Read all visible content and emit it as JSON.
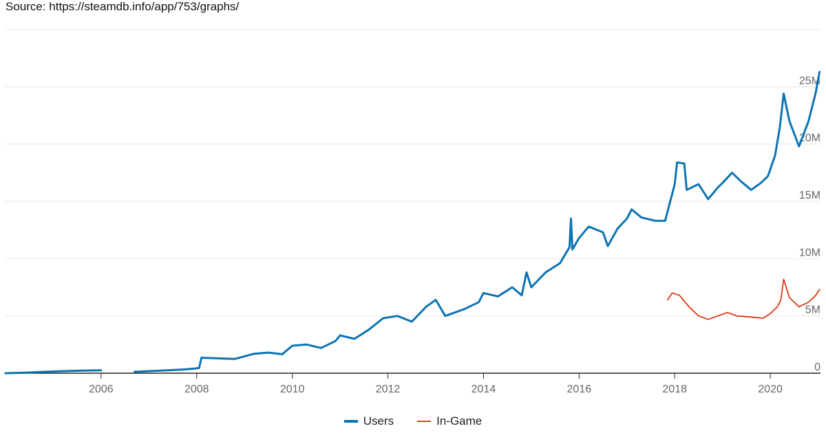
{
  "source_text": "Source: https://steamdb.info/app/753/graphs/",
  "colors": {
    "users": "#0b73b3",
    "ingame": "#dc3912",
    "grid": "#e6e6e6",
    "axis": "#222222"
  },
  "chart_data": {
    "type": "line",
    "xlim": [
      2004.0,
      2021.05
    ],
    "ylim": [
      0,
      30000000
    ],
    "x_ticks": [
      2006,
      2008,
      2010,
      2012,
      2014,
      2016,
      2018,
      2020
    ],
    "y_ticks": [
      {
        "value": 0,
        "label": "0"
      },
      {
        "value": 5000000,
        "label": "5M"
      },
      {
        "value": 10000000,
        "label": "10M"
      },
      {
        "value": 15000000,
        "label": "15M"
      },
      {
        "value": 20000000,
        "label": "20M"
      },
      {
        "value": 25000000,
        "label": "25M"
      }
    ],
    "grid": true,
    "legend_position": "bottom-center",
    "series": [
      {
        "name": "Users",
        "color": "#0b73b3",
        "segments": [
          [
            [
              2004.0,
              0.0
            ],
            [
              2004.4,
              50000.0
            ],
            [
              2004.8,
              120000.0
            ],
            [
              2005.2,
              180000.0
            ],
            [
              2005.6,
              220000.0
            ],
            [
              2006.0,
              250000.0
            ]
          ],
          [
            [
              2006.7,
              120000.0
            ],
            [
              2007.0,
              180000.0
            ],
            [
              2007.4,
              250000.0
            ],
            [
              2007.8,
              350000.0
            ],
            [
              2008.05,
              450000.0
            ],
            [
              2008.1,
              1350000.0
            ],
            [
              2008.4,
              1300000.0
            ],
            [
              2008.8,
              1250000.0
            ],
            [
              2009.2,
              1700000.0
            ],
            [
              2009.5,
              1800000.0
            ],
            [
              2009.8,
              1650000.0
            ]
          ],
          [
            [
              2009.8,
              1700000.0
            ],
            [
              2010.0,
              2400000.0
            ],
            [
              2010.3,
              2500000.0
            ],
            [
              2010.6,
              2200000.0
            ],
            [
              2010.9,
              2800000.0
            ],
            [
              2011.0,
              3300000.0
            ],
            [
              2011.3,
              3000000.0
            ],
            [
              2011.6,
              3800000.0
            ],
            [
              2011.9,
              4800000.0
            ],
            [
              2012.2,
              5000000.0
            ],
            [
              2012.5,
              4500000.0
            ],
            [
              2012.8,
              5800000.0
            ],
            [
              2013.0,
              6400000.0
            ],
            [
              2013.2,
              5000000.0
            ],
            [
              2013.6,
              5600000.0
            ],
            [
              2013.9,
              6200000.0
            ],
            [
              2014.0,
              7000000.0
            ],
            [
              2014.3,
              6700000.0
            ],
            [
              2014.6,
              7500000.0
            ],
            [
              2014.8,
              6800000.0
            ],
            [
              2014.9,
              8800000.0
            ],
            [
              2015.0,
              7500000.0
            ],
            [
              2015.3,
              8800000.0
            ],
            [
              2015.6,
              9600000.0
            ],
            [
              2015.8,
              11000000.0
            ],
            [
              2015.83,
              13500000.0
            ],
            [
              2015.86,
              10800000.0
            ],
            [
              2016.0,
              11800000.0
            ],
            [
              2016.2,
              12800000.0
            ],
            [
              2016.5,
              12300000.0
            ],
            [
              2016.6,
              11100000.0
            ],
            [
              2016.8,
              12600000.0
            ],
            [
              2017.0,
              13500000.0
            ],
            [
              2017.1,
              14300000.0
            ],
            [
              2017.3,
              13600000.0
            ],
            [
              2017.6,
              13300000.0
            ],
            [
              2017.8,
              13300000.0
            ],
            [
              2018.0,
              16500000.0
            ],
            [
              2018.05,
              18400000.0
            ],
            [
              2018.2,
              18300000.0
            ],
            [
              2018.25,
              16000000.0
            ],
            [
              2018.5,
              16500000.0
            ],
            [
              2018.7,
              15200000.0
            ],
            [
              2018.9,
              16200000.0
            ],
            [
              2019.0,
              16600000.0
            ],
            [
              2019.2,
              17500000.0
            ],
            [
              2019.4,
              16700000.0
            ],
            [
              2019.6,
              16000000.0
            ],
            [
              2019.8,
              16600000.0
            ],
            [
              2019.95,
              17200000.0
            ],
            [
              2020.1,
              19000000.0
            ],
            [
              2020.2,
              21500000.0
            ],
            [
              2020.28,
              24400000.0
            ],
            [
              2020.4,
              22000000.0
            ],
            [
              2020.6,
              19800000.0
            ],
            [
              2020.8,
              22000000.0
            ],
            [
              2020.95,
              24500000.0
            ],
            [
              2021.03,
              26300000.0
            ]
          ]
        ]
      },
      {
        "name": "In-Game",
        "color": "#dc3912",
        "segments": [
          [
            [
              2017.85,
              6400000.0
            ],
            [
              2017.95,
              7000000.0
            ],
            [
              2018.1,
              6800000.0
            ],
            [
              2018.3,
              5800000.0
            ],
            [
              2018.5,
              5000000.0
            ],
            [
              2018.7,
              4700000.0
            ],
            [
              2018.9,
              5000000.0
            ],
            [
              2019.1,
              5300000.0
            ],
            [
              2019.3,
              5000000.0
            ],
            [
              2019.6,
              4900000.0
            ],
            [
              2019.85,
              4800000.0
            ],
            [
              2020.0,
              5200000.0
            ],
            [
              2020.15,
              5800000.0
            ],
            [
              2020.22,
              6400000.0
            ],
            [
              2020.28,
              8200000.0
            ],
            [
              2020.4,
              6600000.0
            ],
            [
              2020.6,
              5800000.0
            ],
            [
              2020.8,
              6200000.0
            ],
            [
              2020.95,
              6800000.0
            ],
            [
              2021.03,
              7300000.0
            ]
          ]
        ]
      }
    ]
  }
}
